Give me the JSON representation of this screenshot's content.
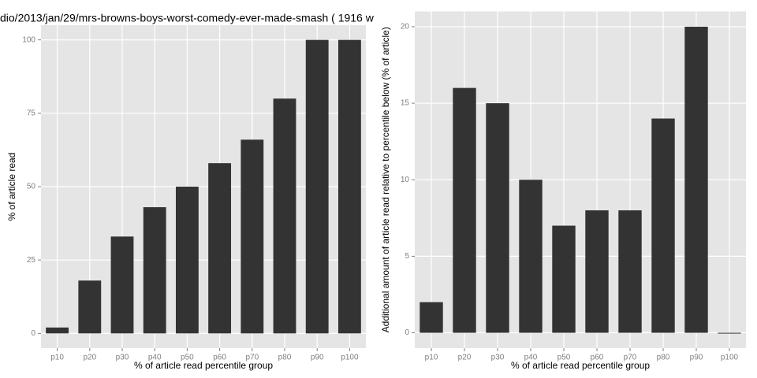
{
  "chart_data": [
    {
      "type": "bar",
      "title": "dio/2013/jan/29/mrs-browns-boys-worst-comedy-ever-made-smash ( 1916 w",
      "x_label": "% of article read percentile group",
      "y_label": "% of article read",
      "categories": [
        "p10",
        "p20",
        "p30",
        "p40",
        "p50",
        "p60",
        "p70",
        "p80",
        "p90",
        "p100"
      ],
      "values": [
        2,
        18,
        33,
        43,
        50,
        58,
        66,
        80,
        100,
        100
      ],
      "color": "#333333",
      "ylim": [
        -5,
        105
      ],
      "yticks": [
        0,
        25,
        50,
        75,
        100
      ],
      "grid": true
    },
    {
      "type": "bar",
      "x_label": "% of article read percentile group",
      "y_label": "Additional amount of article read relative to percentile below (% of article)",
      "categories": [
        "p10",
        "p20",
        "p30",
        "p40",
        "p50",
        "p60",
        "p70",
        "p80",
        "p90",
        "p100"
      ],
      "values": [
        2,
        16,
        15,
        10,
        7,
        8,
        8,
        14,
        20,
        0
      ],
      "color": "#333333",
      "ylim": [
        -1,
        21
      ],
      "yticks": [
        0,
        5,
        10,
        15,
        20
      ],
      "grid": true
    }
  ]
}
